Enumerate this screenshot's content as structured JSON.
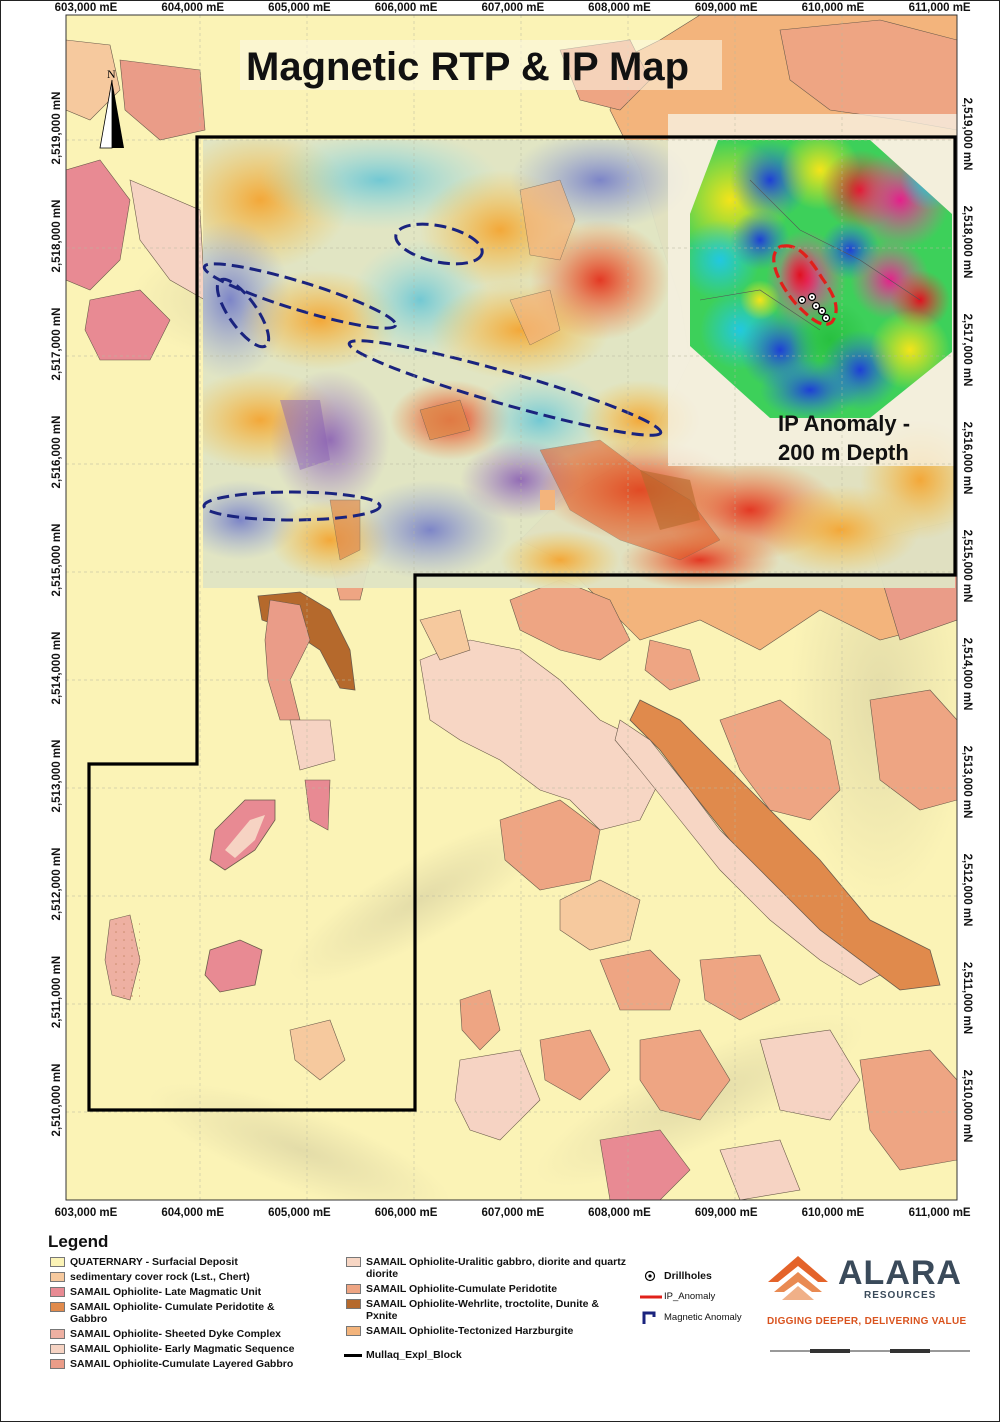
{
  "map": {
    "title": "Magnetic RTP & IP Map",
    "north_label": "N",
    "inset_label_line1": "IP Anomaly -",
    "inset_label_line2": "200 m Depth",
    "easting_labels": [
      "603,000 mE",
      "604,000 mE",
      "605,000 mE",
      "606,000 mE",
      "607,000 mE",
      "608,000 mE",
      "609,000 mE",
      "610,000 mE",
      "611,000 mE"
    ],
    "northing_labels": [
      "2,519,000 mN",
      "2,518,000 mN",
      "2,517,000 mN",
      "2,516,000 mN",
      "2,515,000 mN",
      "2,514,000 mN",
      "2,513,000 mN",
      "2,512,000 mN",
      "2,511,000 mN",
      "2,510,000 mN"
    ]
  },
  "legend": {
    "title": "Legend",
    "units": [
      {
        "label": "QUATERNARY - Surfacial Deposit",
        "color": "#fbf3b6"
      },
      {
        "label": "sedimentary cover rock (Lst., Chert)",
        "color": "#f6c99e"
      },
      {
        "label": "SAMAIL Ophiolite- Late Magmatic Unit",
        "color": "#e88a93"
      },
      {
        "label": "SAMAIL Ophiolite- Cumulate Peridotite & Gabbro",
        "color": "#e08a4c"
      },
      {
        "label": "SAMAIL Ophiolite- Sheeted Dyke Complex",
        "color": "#eeb0a2"
      },
      {
        "label": "SAMAIL Ophiolite- Early Magmatic Sequence",
        "color": "#f6d3c3"
      },
      {
        "label": "SAMAIL Ophiolite-Cumulate Layered Gabbro",
        "color": "#ea9c88"
      },
      {
        "label": "SAMAIL Ophiolite-Uralitic gabbro, diorite and quartz diorite",
        "color": "#f7d6c4"
      },
      {
        "label": "SAMAIL Ophiolite-Cumulate Peridotite",
        "color": "#eea583"
      },
      {
        "label": "SAMAIL Ophiolite-Wehrlite, troctolite, Dunite & Pxnite",
        "color": "#b5692c"
      },
      {
        "label": "SAMAIL Ophiolite-Tectonized Harzburgite",
        "color": "#f3b47c"
      }
    ],
    "block_label": "Mullaq_Expl_Block",
    "symbols": [
      {
        "label": "Drillholes"
      },
      {
        "label": "IP_Anomaly"
      },
      {
        "label": "Magnetic Anomaly"
      }
    ]
  },
  "logo": {
    "name": "ALARA",
    "subtitle": "RESOURCES",
    "tagline": "DIGGING DEEPER, DELIVERING VALUE"
  },
  "colors": {
    "quaternary": "#fbf3b6",
    "block_outline": "#000000",
    "ip_anomaly": "#e0201a",
    "magnetic_anomaly": "#1a237e"
  }
}
